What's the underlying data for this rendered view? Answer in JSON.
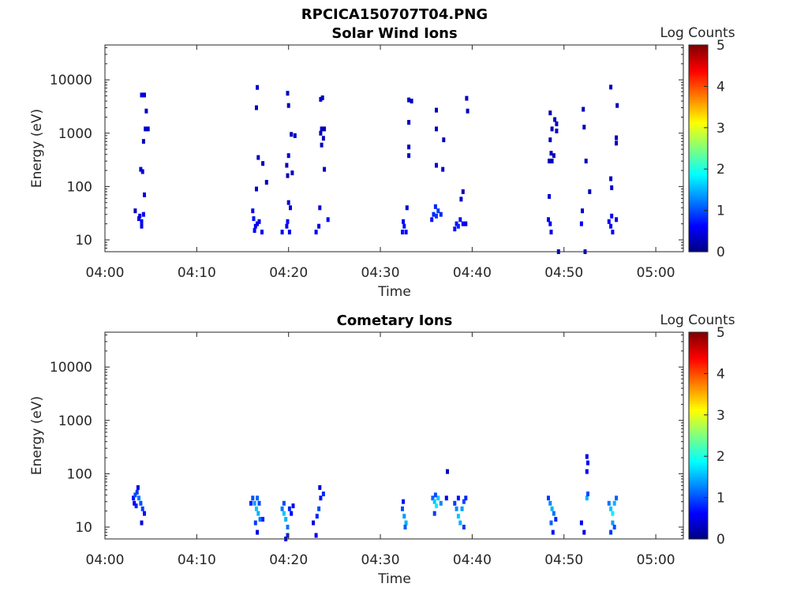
{
  "figure_title": "RPCICA150707T04.PNG",
  "colorbar": {
    "label": "Log Counts",
    "ticks": [
      "0",
      "1",
      "2",
      "3",
      "4",
      "5"
    ],
    "range": [
      0,
      5
    ],
    "colormap": "jet"
  },
  "chart_data": [
    {
      "type": "heatmap",
      "title": "Solar Wind Ions",
      "xlabel": "Time",
      "ylabel": "Energy (eV)",
      "x_ticks": [
        "04:00",
        "04:10",
        "04:20",
        "04:30",
        "04:40",
        "04:50",
        "05:00"
      ],
      "y_ticks": [
        "10",
        "100",
        "1000",
        "10000"
      ],
      "xlim_minutes": [
        0,
        63
      ],
      "ylim_ev": [
        6,
        45000
      ],
      "y_scale": "log",
      "cells": [
        [
          3.3,
          35,
          0.3
        ],
        [
          3.7,
          25,
          0.6
        ],
        [
          4.0,
          22,
          0.5
        ],
        [
          3.8,
          28,
          0.4
        ],
        [
          4.2,
          30,
          0.6
        ],
        [
          4.0,
          18,
          0.5
        ],
        [
          3.9,
          210,
          0.4
        ],
        [
          4.1,
          190,
          0.4
        ],
        [
          4.3,
          70,
          0.5
        ],
        [
          4.2,
          700,
          0.3
        ],
        [
          4.4,
          1200,
          0.4
        ],
        [
          4.7,
          1200,
          0.3
        ],
        [
          4.5,
          2600,
          0.3
        ],
        [
          4.0,
          5200,
          0.5
        ],
        [
          4.3,
          5200,
          0.4
        ],
        [
          16.1,
          35,
          0.6
        ],
        [
          16.2,
          25,
          0.7
        ],
        [
          16.4,
          18,
          0.6
        ],
        [
          16.6,
          20,
          0.5
        ],
        [
          16.3,
          15,
          0.6
        ],
        [
          16.8,
          22,
          0.5
        ],
        [
          17.1,
          14,
          0.6
        ],
        [
          16.5,
          90,
          0.4
        ],
        [
          16.7,
          350,
          0.3
        ],
        [
          16.5,
          3000,
          0.3
        ],
        [
          16.6,
          7200,
          0.4
        ],
        [
          17.6,
          120,
          0.3
        ],
        [
          17.2,
          270,
          0.3
        ],
        [
          19.3,
          14,
          0.6
        ],
        [
          19.8,
          18,
          0.6
        ],
        [
          19.9,
          22,
          0.6
        ],
        [
          20.1,
          14,
          0.5
        ],
        [
          20.0,
          50,
          0.4
        ],
        [
          20.2,
          40,
          0.4
        ],
        [
          19.9,
          160,
          0.3
        ],
        [
          20.0,
          380,
          0.4
        ],
        [
          19.8,
          250,
          0.3
        ],
        [
          20.4,
          180,
          0.3
        ],
        [
          20.3,
          950,
          0.3
        ],
        [
          20.7,
          900,
          0.3
        ],
        [
          20.0,
          3300,
          0.3
        ],
        [
          19.9,
          5600,
          0.3
        ],
        [
          23.0,
          14,
          0.6
        ],
        [
          23.3,
          18,
          0.5
        ],
        [
          23.4,
          40,
          0.5
        ],
        [
          24.3,
          24,
          0.6
        ],
        [
          23.6,
          600,
          0.3
        ],
        [
          23.5,
          1000,
          0.3
        ],
        [
          23.6,
          1200,
          0.3
        ],
        [
          23.9,
          1200,
          0.3
        ],
        [
          23.8,
          800,
          0.3
        ],
        [
          23.9,
          210,
          0.3
        ],
        [
          23.5,
          4300,
          0.4
        ],
        [
          23.7,
          4600,
          0.3
        ],
        [
          32.4,
          14,
          0.7
        ],
        [
          32.6,
          18,
          0.7
        ],
        [
          32.8,
          14,
          0.6
        ],
        [
          32.5,
          22,
          0.6
        ],
        [
          32.9,
          40,
          0.4
        ],
        [
          33.1,
          380,
          0.3
        ],
        [
          33.1,
          550,
          0.3
        ],
        [
          33.1,
          1600,
          0.3
        ],
        [
          33.1,
          4200,
          0.4
        ],
        [
          33.4,
          4000,
          0.3
        ],
        [
          35.6,
          24,
          0.7
        ],
        [
          35.8,
          30,
          0.8
        ],
        [
          36.1,
          28,
          0.9
        ],
        [
          36.3,
          35,
          0.9
        ],
        [
          36.6,
          30,
          0.8
        ],
        [
          36.0,
          42,
          0.8
        ],
        [
          36.1,
          250,
          0.4
        ],
        [
          36.1,
          1200,
          0.3
        ],
        [
          36.1,
          2700,
          0.3
        ],
        [
          36.8,
          210,
          0.3
        ],
        [
          36.9,
          750,
          0.3
        ],
        [
          38.1,
          16,
          0.7
        ],
        [
          38.3,
          20,
          0.7
        ],
        [
          38.5,
          18,
          0.8
        ],
        [
          38.7,
          24,
          0.7
        ],
        [
          39.0,
          20,
          0.6
        ],
        [
          39.3,
          20,
          0.5
        ],
        [
          38.8,
          58,
          0.4
        ],
        [
          39.0,
          80,
          0.3
        ],
        [
          39.5,
          2600,
          0.3
        ],
        [
          39.4,
          4500,
          0.3
        ],
        [
          48.3,
          24,
          0.6
        ],
        [
          48.5,
          20,
          0.6
        ],
        [
          48.6,
          14,
          0.5
        ],
        [
          48.4,
          65,
          0.4
        ],
        [
          48.4,
          300,
          0.3
        ],
        [
          48.6,
          420,
          0.3
        ],
        [
          48.9,
          380,
          0.3
        ],
        [
          48.7,
          300,
          0.3
        ],
        [
          48.5,
          750,
          0.3
        ],
        [
          48.7,
          1200,
          0.3
        ],
        [
          49.2,
          1500,
          0.3
        ],
        [
          49.0,
          1800,
          0.3
        ],
        [
          48.5,
          2400,
          0.3
        ],
        [
          49.2,
          1100,
          0.3
        ],
        [
          49.4,
          6,
          0.3
        ],
        [
          51.9,
          20,
          0.6
        ],
        [
          52.0,
          35,
          0.4
        ],
        [
          52.2,
          1300,
          0.3
        ],
        [
          52.1,
          2800,
          0.3
        ],
        [
          52.4,
          300,
          0.3
        ],
        [
          52.8,
          80,
          0.3
        ],
        [
          52.3,
          6,
          0.3
        ],
        [
          54.9,
          22,
          0.6
        ],
        [
          55.1,
          18,
          0.6
        ],
        [
          55.3,
          14,
          0.6
        ],
        [
          55.2,
          28,
          0.6
        ],
        [
          55.7,
          24,
          0.5
        ],
        [
          55.2,
          95,
          0.4
        ],
        [
          55.1,
          140,
          0.3
        ],
        [
          55.7,
          650,
          0.3
        ],
        [
          55.7,
          820,
          0.3
        ],
        [
          55.8,
          3300,
          0.3
        ],
        [
          55.1,
          7300,
          0.3
        ]
      ]
    },
    {
      "type": "heatmap",
      "title": "Cometary Ions",
      "xlabel": "Time",
      "ylabel": "Energy (eV)",
      "x_ticks": [
        "04:00",
        "04:10",
        "04:20",
        "04:30",
        "04:40",
        "04:50",
        "05:00"
      ],
      "y_ticks": [
        "10",
        "100",
        "1000",
        "10000"
      ],
      "xlim_minutes": [
        0,
        63
      ],
      "ylim_ev": [
        6,
        45000
      ],
      "y_scale": "log",
      "cells": [
        [
          3.1,
          35,
          0.7
        ],
        [
          3.3,
          40,
          1.0
        ],
        [
          3.5,
          45,
          0.9
        ],
        [
          3.7,
          35,
          1.2
        ],
        [
          3.9,
          28,
          1.0
        ],
        [
          4.1,
          22,
          0.9
        ],
        [
          4.3,
          18,
          0.7
        ],
        [
          3.4,
          25,
          0.8
        ],
        [
          3.2,
          28,
          0.6
        ],
        [
          3.6,
          55,
          0.5
        ],
        [
          4.0,
          12,
          0.5
        ],
        [
          15.9,
          28,
          0.8
        ],
        [
          16.1,
          35,
          1.0
        ],
        [
          16.3,
          28,
          1.4
        ],
        [
          16.5,
          22,
          1.6
        ],
        [
          16.7,
          18,
          1.5
        ],
        [
          16.9,
          14,
          1.2
        ],
        [
          16.6,
          35,
          1.1
        ],
        [
          16.8,
          28,
          1.0
        ],
        [
          17.2,
          14,
          0.8
        ],
        [
          16.4,
          12,
          0.9
        ],
        [
          16.6,
          8,
          0.5
        ],
        [
          19.3,
          22,
          1.2
        ],
        [
          19.5,
          18,
          1.6
        ],
        [
          19.7,
          14,
          1.5
        ],
        [
          19.9,
          10,
          1.2
        ],
        [
          19.5,
          28,
          1.0
        ],
        [
          20.1,
          22,
          0.8
        ],
        [
          20.3,
          18,
          0.6
        ],
        [
          19.9,
          7,
          0.8
        ],
        [
          19.7,
          6,
          0.5
        ],
        [
          20.5,
          25,
          0.6
        ],
        [
          22.7,
          12,
          0.5
        ],
        [
          23.1,
          16,
          0.8
        ],
        [
          23.3,
          22,
          1.0
        ],
        [
          23.5,
          35,
          0.7
        ],
        [
          23.8,
          42,
          0.8
        ],
        [
          23.4,
          55,
          0.4
        ],
        [
          23.0,
          7,
          0.6
        ],
        [
          32.4,
          22,
          1.0
        ],
        [
          32.6,
          16,
          1.4
        ],
        [
          32.8,
          12,
          1.5
        ],
        [
          32.5,
          30,
          0.7
        ],
        [
          32.7,
          10,
          1.1
        ],
        [
          35.7,
          35,
          1.1
        ],
        [
          35.9,
          30,
          1.6
        ],
        [
          36.1,
          25,
          1.8
        ],
        [
          36.3,
          35,
          1.6
        ],
        [
          36.6,
          28,
          1.3
        ],
        [
          36.0,
          40,
          1.0
        ],
        [
          35.9,
          18,
          0.9
        ],
        [
          37.2,
          35,
          0.5
        ],
        [
          37.3,
          110,
          0.3
        ],
        [
          38.1,
          28,
          0.9
        ],
        [
          38.3,
          22,
          1.3
        ],
        [
          38.5,
          16,
          1.6
        ],
        [
          38.7,
          12,
          1.5
        ],
        [
          38.9,
          22,
          1.4
        ],
        [
          39.1,
          30,
          1.0
        ],
        [
          39.3,
          35,
          0.8
        ],
        [
          38.5,
          35,
          0.7
        ],
        [
          39.1,
          10,
          0.9
        ],
        [
          48.3,
          35,
          0.9
        ],
        [
          48.5,
          28,
          1.3
        ],
        [
          48.7,
          22,
          1.5
        ],
        [
          48.9,
          18,
          1.2
        ],
        [
          48.6,
          12,
          1.1
        ],
        [
          48.8,
          8,
          0.7
        ],
        [
          49.1,
          14,
          0.8
        ],
        [
          51.9,
          12,
          0.6
        ],
        [
          52.2,
          8,
          0.5
        ],
        [
          52.5,
          35,
          1.5
        ],
        [
          52.6,
          42,
          1.0
        ],
        [
          52.5,
          110,
          0.6
        ],
        [
          52.6,
          160,
          0.6
        ],
        [
          52.5,
          210,
          0.5
        ],
        [
          54.9,
          28,
          1.2
        ],
        [
          55.1,
          22,
          1.6
        ],
        [
          55.3,
          18,
          1.8
        ],
        [
          55.5,
          28,
          1.5
        ],
        [
          55.7,
          35,
          1.1
        ],
        [
          55.3,
          12,
          1.4
        ],
        [
          55.1,
          8,
          0.9
        ],
        [
          55.5,
          10,
          1.0
        ]
      ]
    }
  ]
}
